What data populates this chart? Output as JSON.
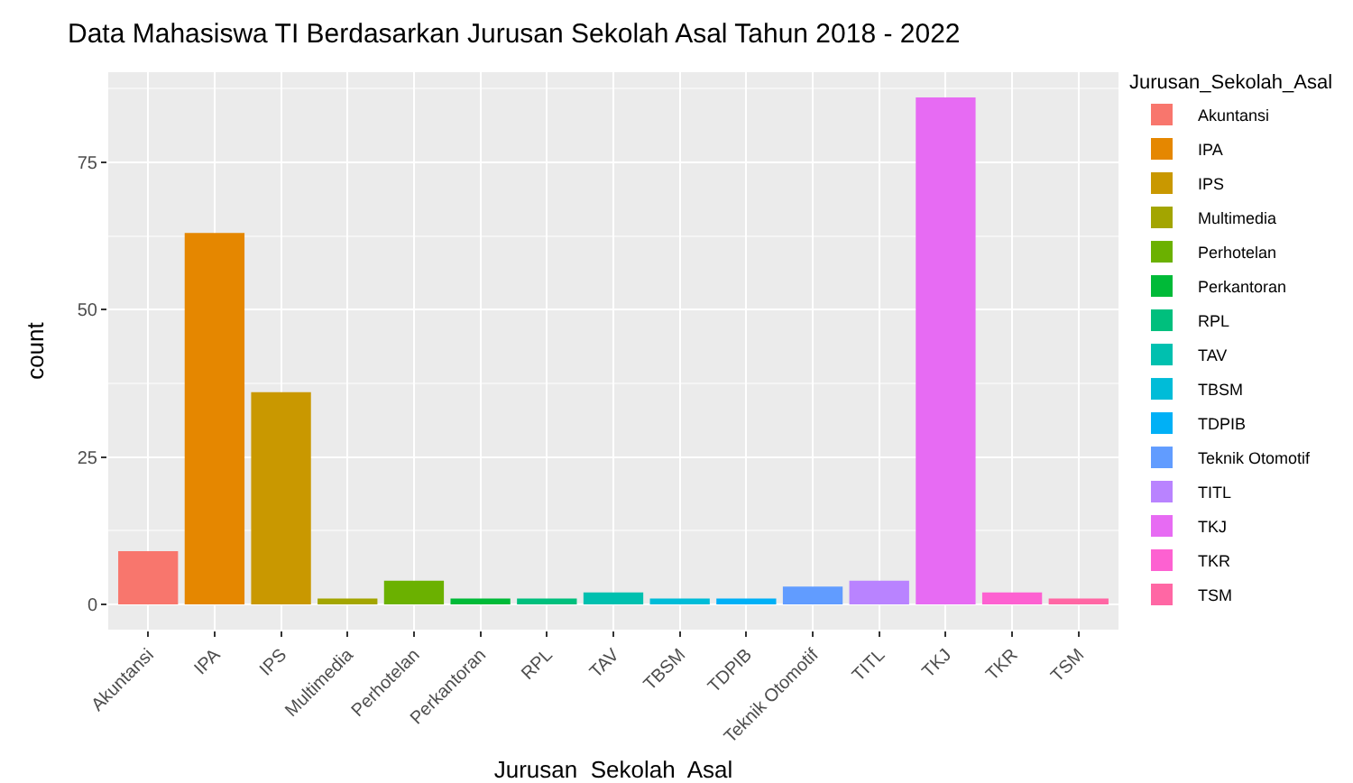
{
  "chart_data": {
    "type": "bar",
    "title": "Data Mahasiswa TI Berdasarkan Jurusan Sekolah Asal Tahun 2018 - 2022",
    "xlabel": "Jurusan  Sekolah  Asal",
    "ylabel": "count",
    "legend_title": "Jurusan_Sekolah_Asal",
    "categories": [
      "Akuntansi",
      "IPA",
      "IPS",
      "Multimedia",
      "Perhotelan",
      "Perkantoran",
      "RPL",
      "TAV",
      "TBSM",
      "TDPIB",
      "Teknik Otomotif",
      "TITL",
      "TKJ",
      "TKR",
      "TSM"
    ],
    "series": [
      {
        "name": "Akuntansi",
        "color": "#f8766d",
        "values": [
          9,
          null,
          null,
          null,
          null,
          null,
          null,
          null,
          null,
          null,
          null,
          null,
          null,
          null,
          null
        ]
      },
      {
        "name": "IPA",
        "color": "#e58700",
        "values": [
          null,
          63,
          null,
          null,
          null,
          null,
          null,
          null,
          null,
          null,
          null,
          null,
          null,
          null,
          null
        ]
      },
      {
        "name": "IPS",
        "color": "#c99800",
        "values": [
          null,
          null,
          36,
          null,
          null,
          null,
          null,
          null,
          null,
          null,
          null,
          null,
          null,
          null,
          null
        ]
      },
      {
        "name": "Multimedia",
        "color": "#a3a500",
        "values": [
          null,
          null,
          null,
          1,
          null,
          null,
          null,
          null,
          null,
          null,
          null,
          null,
          null,
          null,
          null
        ]
      },
      {
        "name": "Perhotelan",
        "color": "#6bb100",
        "values": [
          null,
          null,
          null,
          null,
          4,
          null,
          null,
          null,
          null,
          null,
          null,
          null,
          null,
          null,
          null
        ]
      },
      {
        "name": "Perkantoran",
        "color": "#00ba38",
        "values": [
          null,
          null,
          null,
          null,
          null,
          1,
          null,
          null,
          null,
          null,
          null,
          null,
          null,
          null,
          null
        ]
      },
      {
        "name": "RPL",
        "color": "#00bf7d",
        "values": [
          null,
          null,
          null,
          null,
          null,
          null,
          1,
          null,
          null,
          null,
          null,
          null,
          null,
          null,
          null
        ]
      },
      {
        "name": "TAV",
        "color": "#00c0af",
        "values": [
          null,
          null,
          null,
          null,
          null,
          null,
          null,
          2,
          null,
          null,
          null,
          null,
          null,
          null,
          null
        ]
      },
      {
        "name": "TBSM",
        "color": "#00bcd8",
        "values": [
          null,
          null,
          null,
          null,
          null,
          null,
          null,
          null,
          1,
          null,
          null,
          null,
          null,
          null,
          null
        ]
      },
      {
        "name": "TDPIB",
        "color": "#00b0f6",
        "values": [
          null,
          null,
          null,
          null,
          null,
          null,
          null,
          null,
          null,
          1,
          null,
          null,
          null,
          null,
          null
        ]
      },
      {
        "name": "Teknik Otomotif",
        "color": "#619cff",
        "values": [
          null,
          null,
          null,
          null,
          null,
          null,
          null,
          null,
          null,
          null,
          3,
          null,
          null,
          null,
          null
        ]
      },
      {
        "name": "TITL",
        "color": "#b983ff",
        "values": [
          null,
          null,
          null,
          null,
          null,
          null,
          null,
          null,
          null,
          null,
          null,
          4,
          null,
          null,
          null
        ]
      },
      {
        "name": "TKJ",
        "color": "#e76bf3",
        "values": [
          null,
          null,
          null,
          null,
          null,
          null,
          null,
          null,
          null,
          null,
          null,
          null,
          86,
          null,
          null
        ]
      },
      {
        "name": "TKR",
        "color": "#fd61d1",
        "values": [
          null,
          null,
          null,
          null,
          null,
          null,
          null,
          null,
          null,
          null,
          null,
          null,
          null,
          2,
          null
        ]
      },
      {
        "name": "TSM",
        "color": "#ff67a4",
        "values": [
          null,
          null,
          null,
          null,
          null,
          null,
          null,
          null,
          null,
          null,
          null,
          null,
          null,
          null,
          1
        ]
      }
    ],
    "ylim": [
      -4.3,
      90.3
    ],
    "yticks": [
      0,
      25,
      50,
      75
    ],
    "grid": true,
    "legend": "right"
  }
}
